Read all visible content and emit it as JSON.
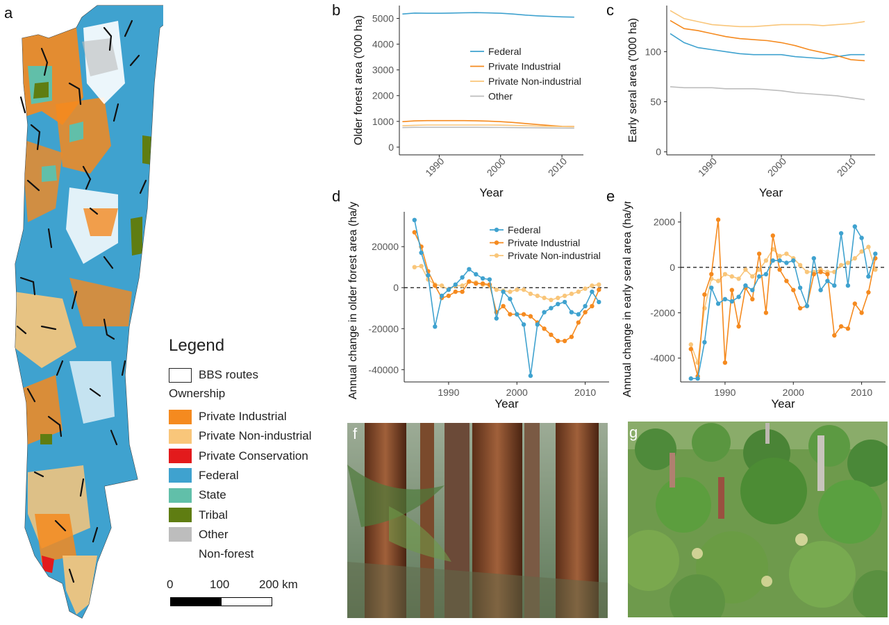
{
  "panels": {
    "a": "a",
    "b": "b",
    "c": "c",
    "d": "d",
    "e": "e",
    "f": "f",
    "g": "g"
  },
  "legend": {
    "title": "Legend",
    "routes_label": "BBS routes",
    "ownership_label": "Ownership",
    "items": [
      {
        "label": "Private Industrial",
        "color": "#f58a1f"
      },
      {
        "label": "Private Non-industrial",
        "color": "#f9c67a"
      },
      {
        "label": "Private Conservation",
        "color": "#e31a1c"
      },
      {
        "label": "Federal",
        "color": "#3fa2cf"
      },
      {
        "label": "State",
        "color": "#61bfa9"
      },
      {
        "label": "Tribal",
        "color": "#5f7d12"
      },
      {
        "label": "Other",
        "color": "#bdbdbd"
      },
      {
        "label": "Non-forest",
        "color": "#ffffff"
      }
    ]
  },
  "scalebar": {
    "ticks": [
      "0",
      "100",
      "200 km"
    ]
  },
  "colors": {
    "federal": "#3fa2cf",
    "private_industrial": "#f58a1f",
    "private_nonindustrial": "#f9c67a",
    "other": "#bdbdbd"
  },
  "chart_data": [
    {
      "id": "b",
      "type": "line",
      "xlabel": "Year",
      "ylabel": "Older forest area ('000 ha)",
      "xlim": [
        1983.5,
        2013.5
      ],
      "ylim": [
        -300,
        5500
      ],
      "xticks": [
        1990,
        2000,
        2010
      ],
      "yticks": [
        0,
        1000,
        2000,
        3000,
        4000,
        5000
      ],
      "legend_position": "center",
      "x": [
        1984,
        1986,
        1988,
        1990,
        1992,
        1994,
        1996,
        1998,
        2000,
        2002,
        2004,
        2006,
        2008,
        2010,
        2012
      ],
      "series": [
        {
          "name": "Federal",
          "color": "#3fa2cf",
          "values": [
            5170,
            5210,
            5200,
            5200,
            5210,
            5220,
            5225,
            5215,
            5200,
            5170,
            5130,
            5100,
            5080,
            5060,
            5050
          ]
        },
        {
          "name": "Private Industrial",
          "color": "#f58a1f",
          "values": [
            990,
            1020,
            1030,
            1030,
            1030,
            1030,
            1025,
            1010,
            990,
            960,
            920,
            880,
            840,
            810,
            800
          ]
        },
        {
          "name": "Private Non-industrial",
          "color": "#f9c67a",
          "values": [
            830,
            850,
            860,
            860,
            860,
            860,
            860,
            860,
            855,
            845,
            835,
            820,
            810,
            800,
            790
          ]
        },
        {
          "name": "Other",
          "color": "#bdbdbd",
          "values": [
            760,
            770,
            770,
            770,
            770,
            770,
            770,
            768,
            765,
            760,
            755,
            750,
            745,
            740,
            735
          ]
        }
      ]
    },
    {
      "id": "c",
      "type": "line",
      "xlabel": "Year",
      "ylabel": "Early seral area ('000 ha)",
      "xlim": [
        1983.5,
        2013.5
      ],
      "ylim": [
        -3,
        146
      ],
      "xticks": [
        1990,
        2000,
        2010
      ],
      "yticks": [
        0,
        50,
        100
      ],
      "x": [
        1984,
        1986,
        1988,
        1990,
        1992,
        1994,
        1996,
        1998,
        2000,
        2002,
        2004,
        2006,
        2008,
        2010,
        2012
      ],
      "series": [
        {
          "name": "Federal",
          "color": "#3fa2cf",
          "values": [
            118,
            109,
            104,
            102,
            100,
            98,
            97,
            97,
            97,
            95,
            94,
            93,
            95,
            97,
            97
          ]
        },
        {
          "name": "Private Industrial",
          "color": "#f58a1f",
          "values": [
            131,
            123,
            121,
            118,
            115,
            113,
            112,
            111,
            109,
            106,
            102,
            99,
            96,
            92,
            91
          ]
        },
        {
          "name": "Private Non-industrial",
          "color": "#f9c67a",
          "values": [
            141,
            133,
            130,
            127,
            126,
            125,
            125,
            126,
            127,
            127,
            127,
            126,
            127,
            128,
            130
          ]
        },
        {
          "name": "Other",
          "color": "#bdbdbd",
          "values": [
            65,
            64,
            64,
            64,
            63,
            63,
            63,
            62,
            61,
            59,
            58,
            57,
            56,
            54,
            52
          ]
        }
      ]
    },
    {
      "id": "d",
      "type": "line",
      "xlabel": "Year",
      "ylabel": "Annual change in older forest area (ha/yr)",
      "xlim": [
        1983.5,
        2013.5
      ],
      "ylim": [
        -46000,
        37000
      ],
      "xticks": [
        1990,
        2000,
        2010
      ],
      "yticks": [
        -40000,
        -20000,
        0,
        20000
      ],
      "reference_line": 0,
      "x": [
        1985,
        1986,
        1987,
        1988,
        1989,
        1990,
        1991,
        1992,
        1993,
        1994,
        1995,
        1996,
        1997,
        1998,
        1999,
        2000,
        2001,
        2002,
        2003,
        2004,
        2005,
        2006,
        2007,
        2008,
        2009,
        2010,
        2011,
        2012
      ],
      "series": [
        {
          "name": "Federal",
          "color": "#3fa2cf",
          "values": [
            33000,
            17000,
            6000,
            -19000,
            -4000,
            -1000,
            1500,
            5000,
            9000,
            6500,
            4500,
            4000,
            -15000,
            -2000,
            -5500,
            -13000,
            -18000,
            -43000,
            -18000,
            -12000,
            -10000,
            -8000,
            -7000,
            -12000,
            -13000,
            -9000,
            -2000,
            -7000
          ]
        },
        {
          "name": "Private Industrial",
          "color": "#f58a1f",
          "values": [
            27000,
            20000,
            8000,
            1000,
            -5000,
            -4000,
            -2000,
            -2000,
            3000,
            2000,
            2000,
            1500,
            -12000,
            -9000,
            -13000,
            -13000,
            -13000,
            -14000,
            -17000,
            -20000,
            -23000,
            -26000,
            -26000,
            -24000,
            -17000,
            -12000,
            -9000,
            -1000
          ]
        },
        {
          "name": "Private Non-industrial",
          "color": "#f9c67a",
          "values": [
            10000,
            10500,
            4000,
            1500,
            1000,
            -1000,
            1000,
            1000,
            3000,
            2500,
            1500,
            1000,
            -1000,
            -1500,
            -2000,
            -1000,
            -1000,
            -3000,
            -4000,
            -5000,
            -6000,
            -5000,
            -4000,
            -3000,
            -2000,
            -500,
            1000,
            1500
          ]
        }
      ]
    },
    {
      "id": "e",
      "type": "line",
      "xlabel": "Year",
      "ylabel": "Annual change in early seral area (ha/yr)",
      "xlim": [
        1983.5,
        2013.5
      ],
      "ylim": [
        -5050,
        2450
      ],
      "xticks": [
        1990,
        2000,
        2010
      ],
      "yticks": [
        -4000,
        -2000,
        0,
        2000
      ],
      "reference_line": 0,
      "x": [
        1985,
        1986,
        1987,
        1988,
        1989,
        1990,
        1991,
        1992,
        1993,
        1994,
        1995,
        1996,
        1997,
        1998,
        1999,
        2000,
        2001,
        2002,
        2003,
        2004,
        2005,
        2006,
        2007,
        2008,
        2009,
        2010,
        2011,
        2012
      ],
      "series": [
        {
          "name": "Federal",
          "color": "#3fa2cf",
          "values": [
            -4900,
            -4900,
            -3300,
            -900,
            -1600,
            -1400,
            -1500,
            -1300,
            -800,
            -1000,
            -400,
            -300,
            300,
            300,
            200,
            300,
            -900,
            -1700,
            400,
            -1000,
            -600,
            -800,
            1500,
            -800,
            1800,
            1300,
            -400,
            600
          ]
        },
        {
          "name": "Private Industrial",
          "color": "#f58a1f",
          "values": [
            -3600,
            -4800,
            -1200,
            -300,
            2100,
            -4200,
            -1000,
            -2600,
            -900,
            -1400,
            600,
            -2000,
            1400,
            -100,
            -600,
            -1000,
            -1800,
            -1700,
            -300,
            -200,
            -300,
            -3000,
            -2600,
            -2700,
            -1600,
            -2000,
            -1100,
            400
          ]
        },
        {
          "name": "Private Non-industrial",
          "color": "#f9c67a",
          "values": [
            -3400,
            -4200,
            -1800,
            -500,
            -600,
            -300,
            -400,
            -500,
            -100,
            -400,
            -100,
            300,
            800,
            500,
            600,
            400,
            100,
            -200,
            -200,
            -100,
            -200,
            -200,
            100,
            200,
            400,
            700,
            900,
            -100
          ]
        }
      ]
    }
  ]
}
